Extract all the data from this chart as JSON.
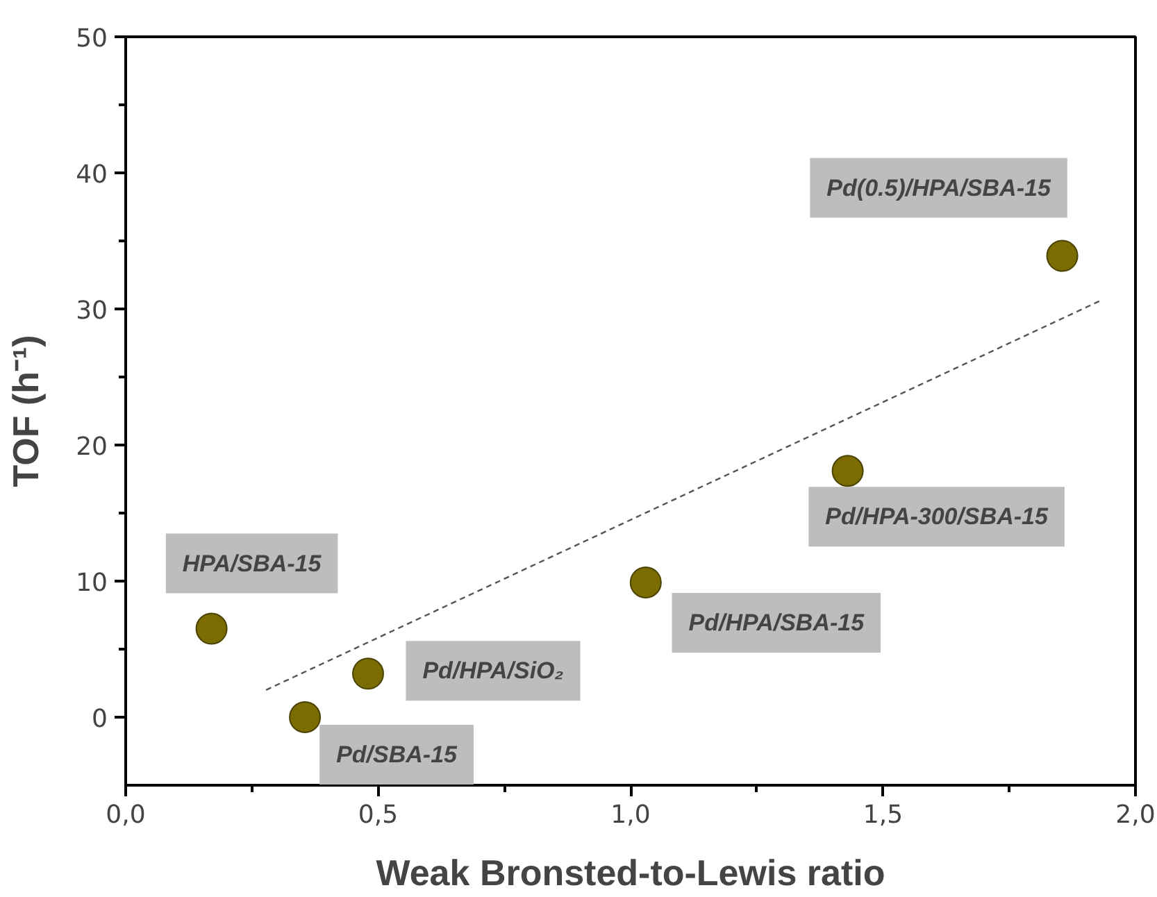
{
  "chart_data": {
    "type": "scatter",
    "xlabel": "Weak Bronsted-to-Lewis ratio",
    "ylabel": "TOF (h⁻¹)",
    "xlim": [
      0,
      2.0
    ],
    "ylim": [
      -5,
      50
    ],
    "xticks": [
      {
        "value": 0,
        "label": "0,0"
      },
      {
        "value": 0.25,
        "label": null
      },
      {
        "value": 0.5,
        "label": "0,5"
      },
      {
        "value": 0.75,
        "label": null
      },
      {
        "value": 1.0,
        "label": "1,0"
      },
      {
        "value": 1.25,
        "label": null
      },
      {
        "value": 1.5,
        "label": "1,5"
      },
      {
        "value": 1.75,
        "label": null
      },
      {
        "value": 2.0,
        "label": "2,0"
      }
    ],
    "yticks": [
      0,
      {
        "value": 5,
        "label": null
      },
      10,
      {
        "value": 15,
        "label": null
      },
      20,
      {
        "value": 25,
        "label": null
      },
      30,
      {
        "value": 35,
        "label": null
      },
      40,
      {
        "value": 45,
        "label": null
      },
      50
    ],
    "grid": false,
    "marker": "circle",
    "series": [
      {
        "color": "#7a6c00",
        "x": [
          0.17,
          0.355,
          0.48,
          1.03,
          1.43,
          1.855
        ],
        "values": [
          6.5,
          0,
          3.2,
          9.9,
          18.1,
          33.9
        ]
      },
      {
        "type": "line",
        "color": "#555555",
        "line_style": "dashed",
        "marker": "none",
        "x": [
          0.278,
          1.93
        ],
        "values": [
          2.0,
          30.6
        ]
      }
    ],
    "annotations": [
      {
        "text": "HPA/SBA-15",
        "x": 0.17,
        "y": 6.5
      },
      {
        "text": "Pd/SBA-15",
        "x": 0.355,
        "y": 0
      },
      {
        "text": "Pd/HPA/SiO₂",
        "x": 0.48,
        "y": 3.2
      },
      {
        "text": "Pd/HPA/SBA-15",
        "x": 1.03,
        "y": 9.9
      },
      {
        "text": "Pd/HPA-300/SBA-15",
        "x": 1.43,
        "y": 18.1
      },
      {
        "text": "Pd(0.5)/HPA/SBA-15",
        "x": 1.855,
        "y": 33.9
      }
    ]
  }
}
